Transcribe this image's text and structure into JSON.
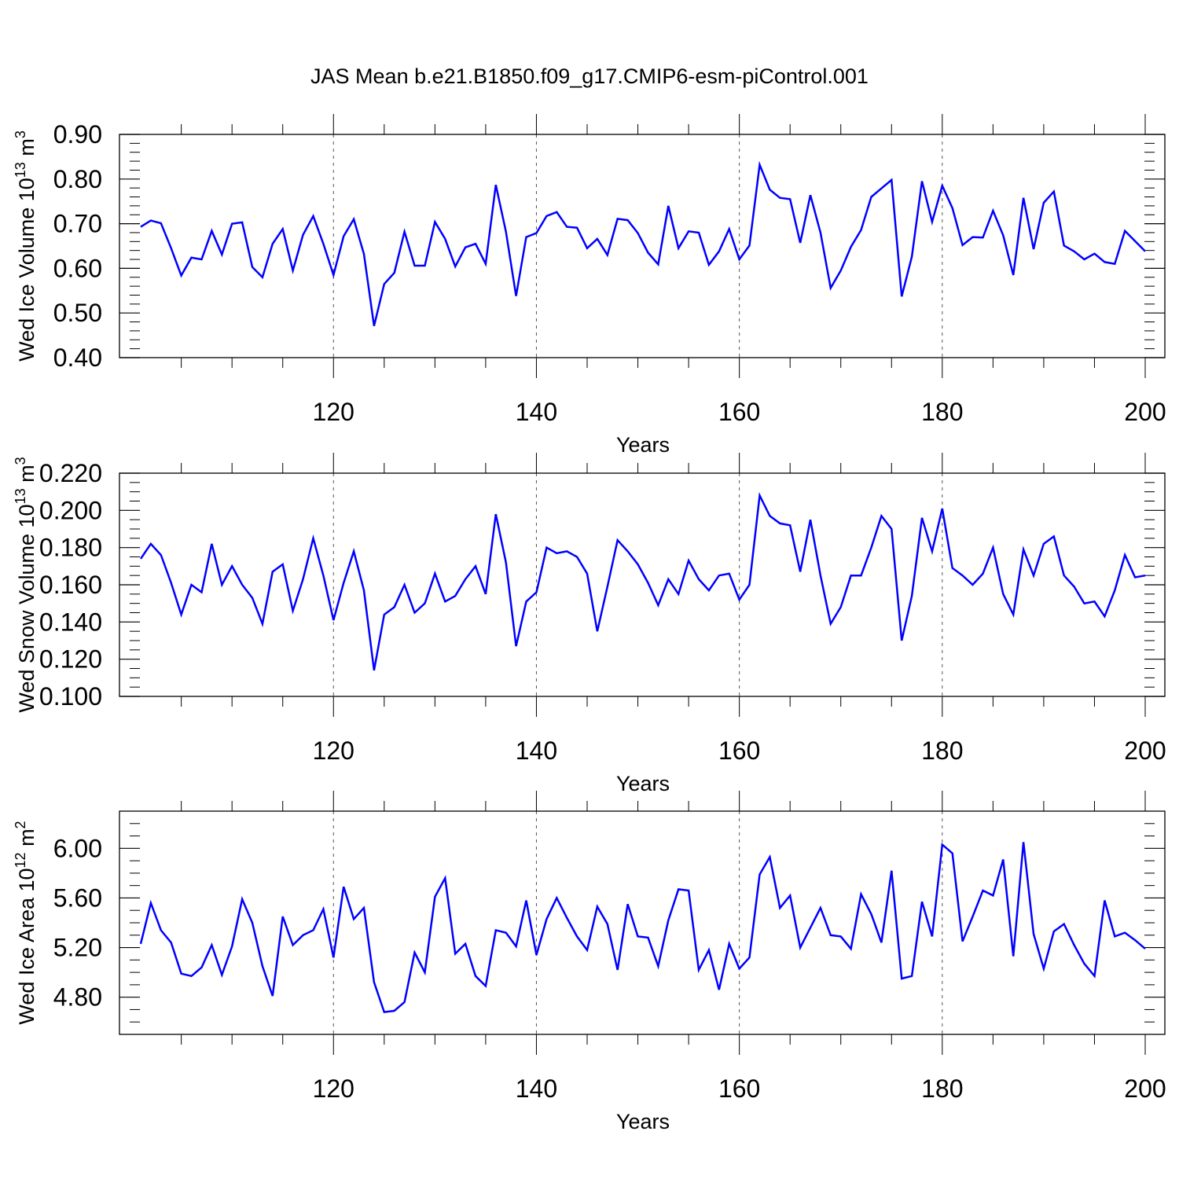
{
  "title": "JAS Mean b.e21.B1850.f09_g17.CMIP6-esm-piControl.001",
  "line_color": "#0000ff",
  "chart_data": [
    {
      "type": "line",
      "ylabel": {
        "main": "Wed Ice Volume 10",
        "sup1": "13",
        "mid": " m",
        "sup2": "3"
      },
      "xlabel": "Years",
      "xlim": [
        101,
        200
      ],
      "ylim": [
        0.4,
        0.9
      ],
      "xticks": [
        120,
        140,
        160,
        180,
        200
      ],
      "xtick_labels": [
        "120",
        "140",
        "160",
        "180",
        "200"
      ],
      "yticks": [
        0.4,
        0.5,
        0.6,
        0.7,
        0.8,
        0.9
      ],
      "ytick_labels": [
        "0.40",
        "0.50",
        "0.60",
        "0.70",
        "0.80",
        "0.90"
      ],
      "yminor_step": 0.02,
      "grid": "dashed vertical at major x ticks",
      "series": [
        {
          "x_start": 101,
          "values": [
            0.693,
            0.707,
            0.701,
            0.645,
            0.584,
            0.624,
            0.62,
            0.684,
            0.631,
            0.7,
            0.703,
            0.603,
            0.58,
            0.655,
            0.688,
            0.595,
            0.675,
            0.717,
            0.655,
            0.585,
            0.672,
            0.71,
            0.632,
            0.471,
            0.565,
            0.59,
            0.682,
            0.606,
            0.606,
            0.704,
            0.666,
            0.604,
            0.647,
            0.655,
            0.61,
            0.787,
            0.682,
            0.538,
            0.67,
            0.679,
            0.717,
            0.726,
            0.693,
            0.691,
            0.645,
            0.666,
            0.63,
            0.711,
            0.708,
            0.679,
            0.635,
            0.609,
            0.74,
            0.645,
            0.683,
            0.68,
            0.608,
            0.638,
            0.688,
            0.62,
            0.651,
            0.832,
            0.776,
            0.758,
            0.755,
            0.657,
            0.764,
            0.68,
            0.556,
            0.595,
            0.648,
            0.686,
            0.76,
            0.779,
            0.798,
            0.537,
            0.626,
            0.795,
            0.704,
            0.785,
            0.735,
            0.652,
            0.67,
            0.669,
            0.729,
            0.674,
            0.585,
            0.758,
            0.643,
            0.747,
            0.772,
            0.651,
            0.638,
            0.62,
            0.633,
            0.614,
            0.61,
            0.684,
            0.661,
            0.638
          ]
        }
      ]
    },
    {
      "type": "line",
      "ylabel": {
        "main": "Wed Snow Volume 10",
        "sup1": "13",
        "mid": " m",
        "sup2": "3"
      },
      "xlabel": "Years",
      "xlim": [
        101,
        200
      ],
      "ylim": [
        0.1,
        0.22
      ],
      "xticks": [
        120,
        140,
        160,
        180,
        200
      ],
      "xtick_labels": [
        "120",
        "140",
        "160",
        "180",
        "200"
      ],
      "yticks": [
        0.1,
        0.12,
        0.14,
        0.16,
        0.18,
        0.2,
        0.22
      ],
      "ytick_labels": [
        "0.100",
        "0.120",
        "0.140",
        "0.160",
        "0.180",
        "0.200",
        "0.220"
      ],
      "yminor_step": 0.005,
      "grid": "dashed vertical at major x ticks",
      "series": [
        {
          "x_start": 101,
          "values": [
            0.174,
            0.182,
            0.176,
            0.161,
            0.144,
            0.16,
            0.156,
            0.182,
            0.16,
            0.17,
            0.16,
            0.153,
            0.139,
            0.167,
            0.171,
            0.146,
            0.163,
            0.185,
            0.165,
            0.141,
            0.161,
            0.178,
            0.157,
            0.114,
            0.144,
            0.148,
            0.16,
            0.145,
            0.15,
            0.166,
            0.151,
            0.154,
            0.163,
            0.17,
            0.155,
            0.198,
            0.172,
            0.127,
            0.151,
            0.156,
            0.18,
            0.177,
            0.178,
            0.175,
            0.166,
            0.135,
            0.159,
            0.184,
            0.178,
            0.171,
            0.161,
            0.149,
            0.163,
            0.155,
            0.173,
            0.163,
            0.157,
            0.165,
            0.166,
            0.152,
            0.16,
            0.208,
            0.197,
            0.193,
            0.192,
            0.167,
            0.195,
            0.165,
            0.139,
            0.148,
            0.165,
            0.165,
            0.18,
            0.197,
            0.19,
            0.13,
            0.154,
            0.196,
            0.178,
            0.201,
            0.169,
            0.165,
            0.16,
            0.166,
            0.18,
            0.155,
            0.144,
            0.179,
            0.165,
            0.182,
            0.186,
            0.165,
            0.159,
            0.15,
            0.151,
            0.143,
            0.157,
            0.176,
            0.164,
            0.165
          ]
        }
      ]
    },
    {
      "type": "line",
      "ylabel": {
        "main": "Wed Ice Area 10",
        "sup1": "12",
        "mid": " m",
        "sup2": "2"
      },
      "xlabel": "Years",
      "xlim": [
        101,
        200
      ],
      "ylim": [
        4.5,
        6.3
      ],
      "xticks": [
        120,
        140,
        160,
        180,
        200
      ],
      "xtick_labels": [
        "120",
        "140",
        "160",
        "180",
        "200"
      ],
      "yticks": [
        4.8,
        5.2,
        5.6,
        6.0
      ],
      "ytick_labels": [
        "4.80",
        "5.20",
        "5.60",
        "6.00"
      ],
      "yminor_step": 0.1,
      "grid": "dashed vertical at major x ticks",
      "series": [
        {
          "x_start": 101,
          "values": [
            5.23,
            5.56,
            5.34,
            5.24,
            4.99,
            4.97,
            5.04,
            5.22,
            4.98,
            5.21,
            5.59,
            5.4,
            5.05,
            4.81,
            5.45,
            5.22,
            5.3,
            5.34,
            5.51,
            5.12,
            5.69,
            5.43,
            5.52,
            4.92,
            4.68,
            4.69,
            4.76,
            5.16,
            5.0,
            5.61,
            5.76,
            5.15,
            5.23,
            4.97,
            4.89,
            5.34,
            5.32,
            5.21,
            5.58,
            5.14,
            5.43,
            5.6,
            5.44,
            5.29,
            5.18,
            5.53,
            5.39,
            5.02,
            5.55,
            5.29,
            5.28,
            5.05,
            5.42,
            5.67,
            5.66,
            5.02,
            5.18,
            4.86,
            5.23,
            5.03,
            5.12,
            5.79,
            5.93,
            5.52,
            5.62,
            5.2,
            5.36,
            5.52,
            5.3,
            5.29,
            5.19,
            5.63,
            5.47,
            5.24,
            5.82,
            4.95,
            4.97,
            5.57,
            5.29,
            6.03,
            5.96,
            5.25,
            5.45,
            5.66,
            5.62,
            5.91,
            5.13,
            6.05,
            5.31,
            5.03,
            5.33,
            5.39,
            5.22,
            5.07,
            4.97,
            5.58,
            5.29,
            5.32,
            5.26,
            5.19
          ]
        }
      ]
    }
  ]
}
